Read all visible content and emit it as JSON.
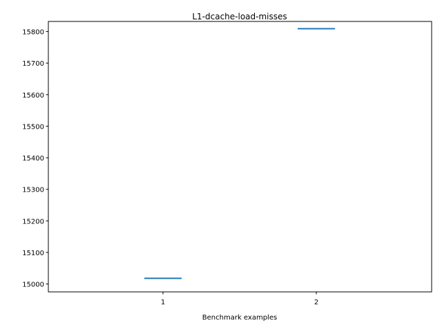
{
  "chart_data": {
    "type": "line",
    "title": "L1-dcache-load-misses",
    "xlabel": "Benchmark examples",
    "ylabel": "",
    "x_categories": [
      "1",
      "2"
    ],
    "series": [
      {
        "values": [
          15018,
          15809
        ]
      }
    ],
    "y_ticks": [
      "15000",
      "15100",
      "15200",
      "15300",
      "15400",
      "15500",
      "15600",
      "15700",
      "15800"
    ],
    "ylim": [
      14975,
      15832
    ],
    "grid": false,
    "legend": "none",
    "colors": {
      "series": "#1f77b4",
      "axes": "#000000"
    }
  }
}
